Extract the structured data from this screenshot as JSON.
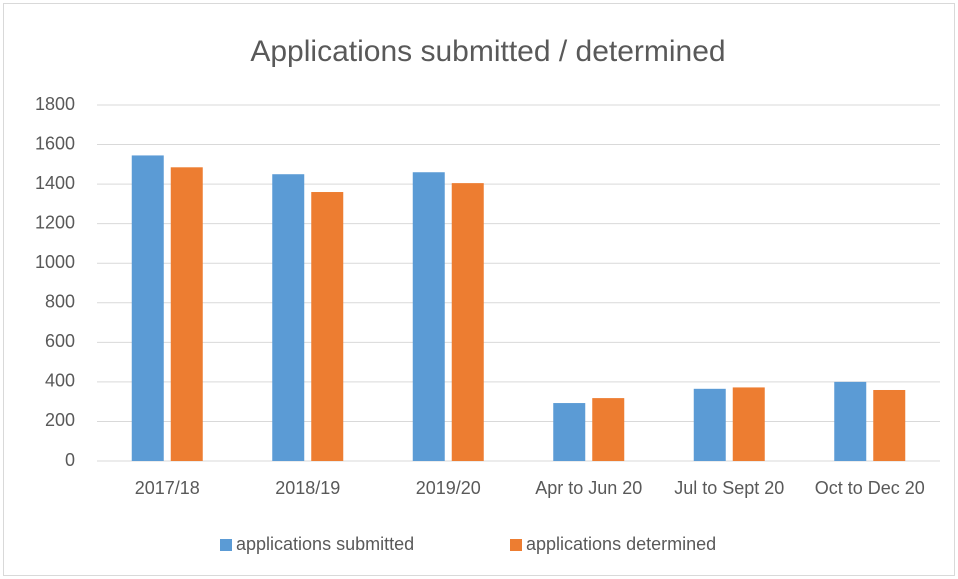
{
  "chart_data": {
    "type": "bar",
    "title": "Applications submitted / determined",
    "categories": [
      "2017/18",
      "2018/19",
      "2019/20",
      "Apr to Jun 20",
      "Jul to Sept 20",
      "Oct to Dec 20"
    ],
    "series": [
      {
        "name": "applications submitted",
        "color": "#5b9bd5",
        "values": [
          1545,
          1450,
          1460,
          293,
          365,
          400
        ]
      },
      {
        "name": "applications determined",
        "color": "#ed7d31",
        "values": [
          1485,
          1360,
          1405,
          318,
          372,
          359
        ]
      }
    ],
    "ylim": [
      0,
      1800
    ],
    "yticks": [
      0,
      200,
      400,
      600,
      800,
      1000,
      1200,
      1400,
      1600,
      1800
    ],
    "grid": true,
    "legend": "bottom"
  }
}
